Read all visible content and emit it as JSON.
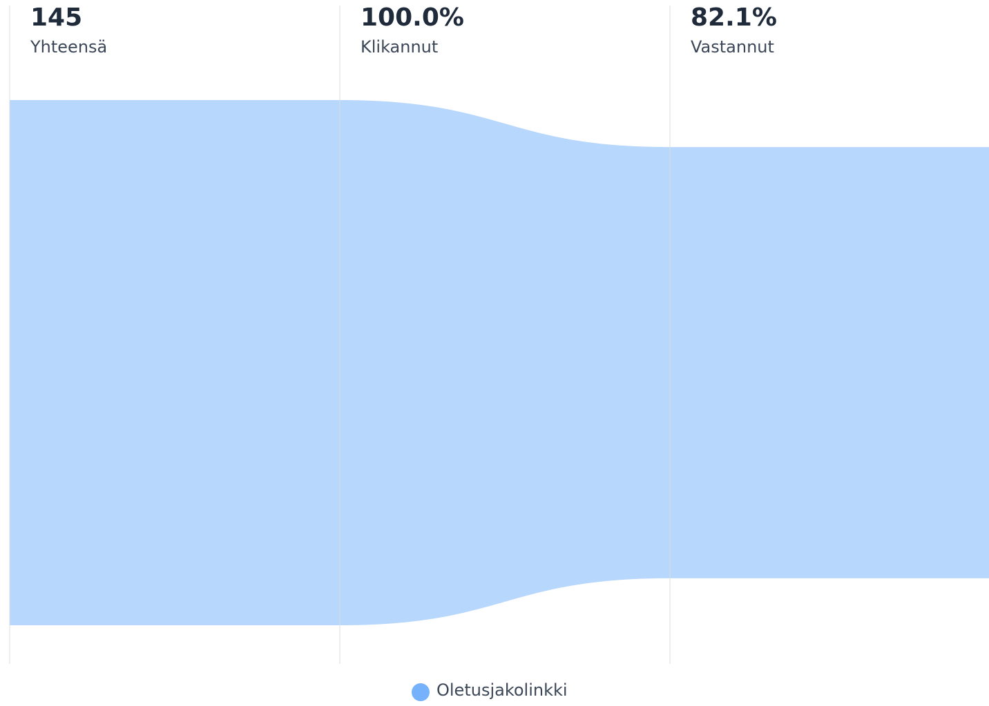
{
  "chart_data": {
    "type": "funnel",
    "categories": [
      "Yhteensä",
      "Klikannut",
      "Vastannut"
    ],
    "values": [
      145,
      100.0,
      82.1
    ],
    "value_labels": [
      "145",
      "100.0%",
      "82.1%"
    ],
    "series": [
      {
        "name": "Oletusjakolinkki",
        "color": "#b7d7fd",
        "legend_color": "#76b1fb"
      }
    ]
  }
}
